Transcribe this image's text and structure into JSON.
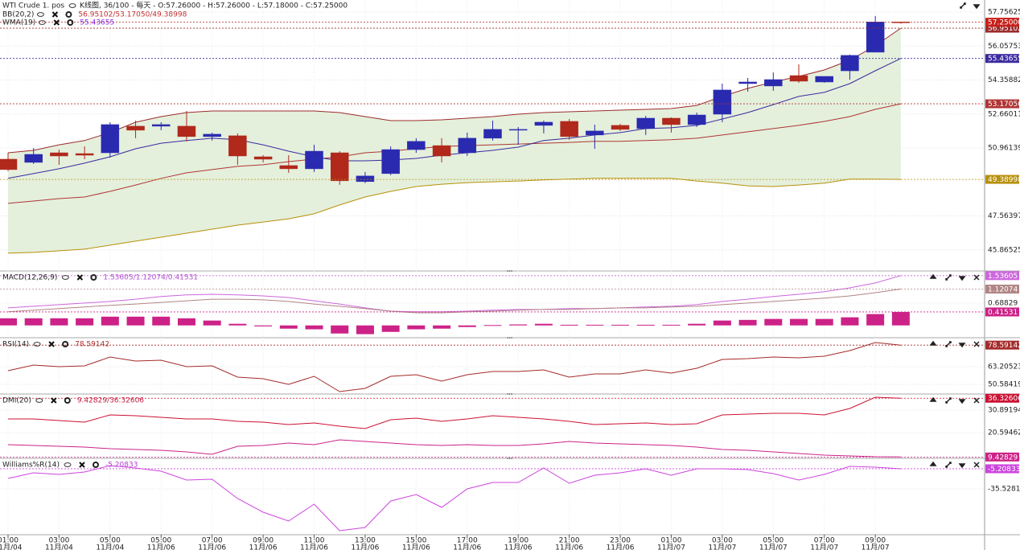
{
  "chart_data": [
    {
      "type": "candlestick",
      "title": "WTI Crude 1. pos",
      "subtitle": "K线图, 36/100 - 每天 - O:57.26000 - H:57.26000 - L:57.18000 - C:57.25000",
      "categories": [
        "01:00",
        null,
        "03:00",
        null,
        "05:00",
        null,
        "05:00",
        null,
        "07:00",
        null,
        "09:00",
        null,
        "11:00",
        null,
        "13:00",
        null,
        "15:00",
        null,
        "17:00",
        null,
        "19:00",
        null,
        "21:00",
        null,
        "23:00",
        null,
        "01:00",
        null,
        "03:00",
        null,
        "05:00",
        null,
        "07:00",
        null,
        "09:00",
        null
      ],
      "dates": [
        "11月/04",
        null,
        "11月/04",
        null,
        "11月/04",
        null,
        "11月/06",
        null,
        "11月/06",
        null,
        "11月/06",
        null,
        "11月/06",
        null,
        "11月/06",
        null,
        "11月/06",
        null,
        "11月/06",
        null,
        "11月/06",
        null,
        "11月/06",
        null,
        "11月/06",
        null,
        "11月/07",
        null,
        "11月/07",
        null,
        "11月/07",
        null,
        "11月/07",
        null,
        "11月/07",
        null
      ],
      "open": [
        50.4,
        50.24,
        50.72,
        50.68,
        50.72,
        52.05,
        52.05,
        52.05,
        51.53,
        51.57,
        50.52,
        50.08,
        49.92,
        50.72,
        49.28,
        49.68,
        50.88,
        51.08,
        50.72,
        51.45,
        51.85,
        52.09,
        52.29,
        51.61,
        52.09,
        51.93,
        52.45,
        52.13,
        52.65,
        54.18,
        54.06,
        54.58,
        54.26,
        54.82,
        55.75,
        57.26
      ],
      "high": [
        50.72,
        50.96,
        50.88,
        51.04,
        52.25,
        52.33,
        52.25,
        52.81,
        51.73,
        51.69,
        50.6,
        50.6,
        51.12,
        50.8,
        49.76,
        51.04,
        51.45,
        51.45,
        51.73,
        52.33,
        52.01,
        52.33,
        52.41,
        52.13,
        52.17,
        52.57,
        52.49,
        52.73,
        54.18,
        54.46,
        54.74,
        55.14,
        54.54,
        55.63,
        57.56,
        57.26
      ],
      "low": [
        49.8,
        50.16,
        50.12,
        50.4,
        50.48,
        51.45,
        51.85,
        51.29,
        51.33,
        50.12,
        50.24,
        49.72,
        49.76,
        49.12,
        49.2,
        49.6,
        50.72,
        50.24,
        50.56,
        51.33,
        51.12,
        51.69,
        51.37,
        50.92,
        51.81,
        51.61,
        51.73,
        52.01,
        52.25,
        53.78,
        53.82,
        54.22,
        54.22,
        54.38,
        55.75,
        57.18
      ],
      "close": [
        49.88,
        50.64,
        50.56,
        50.6,
        52.13,
        51.85,
        52.13,
        51.53,
        51.65,
        50.56,
        50.4,
        49.92,
        50.8,
        49.32,
        49.56,
        50.88,
        51.29,
        50.56,
        51.45,
        51.89,
        51.89,
        52.25,
        51.53,
        51.81,
        51.89,
        52.45,
        52.13,
        52.61,
        53.86,
        54.26,
        54.38,
        54.3,
        54.54,
        55.59,
        57.26,
        57.25
      ],
      "close_label": "57.25000",
      "up_color": "#2a2ab0",
      "down_color": "#b0291b",
      "ylim": [
        44.81,
        58.36
      ],
      "yticks": [
        57.75625,
        56.05753,
        54.35882,
        52.66011,
        50.96139,
        47.56397,
        45.86525
      ],
      "grid": true,
      "indicators": [
        {
          "name": "BB(20,2)",
          "readout": "56.95102/53.17050/49.38998",
          "readout_color": "#c03030",
          "fill": "#e4f0dc",
          "series": [
            {
              "color": "#9c2b2b",
              "values": [
                50.72,
                50.84,
                51.12,
                51.33,
                51.73,
                52.25,
                52.53,
                52.73,
                52.81,
                52.81,
                52.81,
                52.81,
                52.81,
                52.73,
                52.53,
                52.33,
                52.33,
                52.37,
                52.45,
                52.53,
                52.65,
                52.73,
                52.77,
                52.81,
                52.85,
                52.89,
                52.93,
                53.09,
                53.54,
                53.94,
                54.26,
                54.54,
                54.86,
                55.35,
                56.07,
                56.95102
              ],
              "last_label": "56.95102"
            },
            {
              "color": "#b03535",
              "values": [
                48.19,
                48.31,
                48.43,
                48.51,
                48.79,
                49.11,
                49.44,
                49.72,
                49.88,
                50.04,
                50.12,
                50.28,
                50.4,
                50.52,
                50.72,
                50.8,
                50.92,
                51.04,
                51.08,
                51.12,
                51.16,
                51.2,
                51.24,
                51.29,
                51.29,
                51.33,
                51.37,
                51.45,
                51.61,
                51.77,
                51.93,
                52.09,
                52.29,
                52.53,
                52.89,
                53.1705
              ],
              "last_label": "53.17050"
            },
            {
              "color": "#b8900a",
              "values": [
                45.7,
                45.74,
                45.82,
                45.9,
                46.1,
                46.3,
                46.5,
                46.7,
                46.9,
                47.1,
                47.26,
                47.42,
                47.67,
                48.11,
                48.51,
                48.79,
                49.03,
                49.15,
                49.23,
                49.27,
                49.31,
                49.36,
                49.4,
                49.44,
                49.44,
                49.44,
                49.44,
                49.31,
                49.2,
                49.07,
                49.03,
                49.11,
                49.2,
                49.4,
                49.4,
                49.38998
              ],
              "last_label": "49.38998"
            }
          ]
        },
        {
          "name": "WMA(19)",
          "readout": "55.43655",
          "readout_color": "#8a2be2",
          "series": [
            {
              "color": "#3a2aa0",
              "values": [
                49.44,
                49.68,
                49.92,
                50.2,
                50.52,
                50.92,
                51.2,
                51.33,
                51.45,
                51.37,
                51.12,
                50.8,
                50.52,
                50.32,
                50.32,
                50.36,
                50.44,
                50.6,
                50.72,
                50.84,
                51.0,
                51.33,
                51.45,
                51.61,
                51.73,
                51.93,
                51.97,
                52.09,
                52.41,
                52.73,
                53.13,
                53.54,
                53.74,
                54.18,
                54.82,
                55.43655
              ],
              "last_label": "55.43655"
            }
          ]
        }
      ]
    },
    {
      "type": "line",
      "name": "MACD(12,26,9)",
      "readout": "1.53605/1.12074/0.41531",
      "readout_color": "#b050d0",
      "ylim": [
        -0.38,
        1.68
      ],
      "yticks": [
        0.68829
      ],
      "grid": true,
      "series": [
        {
          "color": "#cc66dd",
          "values": [
            0.54,
            0.59,
            0.64,
            0.69,
            0.74,
            0.81,
            0.89,
            0.94,
            0.96,
            0.94,
            0.91,
            0.86,
            0.76,
            0.66,
            0.54,
            0.44,
            0.42,
            0.42,
            0.44,
            0.47,
            0.49,
            0.49,
            0.52,
            0.52,
            0.54,
            0.57,
            0.59,
            0.64,
            0.74,
            0.81,
            0.89,
            0.96,
            1.04,
            1.16,
            1.31,
            1.53605
          ],
          "last_label": "1.53605"
        },
        {
          "color": "#b08585",
          "values": [
            0.42,
            0.47,
            0.52,
            0.57,
            0.62,
            0.66,
            0.71,
            0.76,
            0.81,
            0.81,
            0.79,
            0.74,
            0.66,
            0.59,
            0.52,
            0.44,
            0.39,
            0.39,
            0.42,
            0.44,
            0.47,
            0.49,
            0.49,
            0.52,
            0.54,
            0.54,
            0.57,
            0.59,
            0.64,
            0.69,
            0.74,
            0.79,
            0.84,
            0.91,
            1.01,
            1.12074
          ],
          "last_label": "1.12074"
        },
        {
          "kind": "bar",
          "color": "#cc2288",
          "values": [
            0.22,
            0.22,
            0.22,
            0.22,
            0.27,
            0.27,
            0.27,
            0.22,
            0.15,
            0.05,
            -0.03,
            -0.1,
            -0.12,
            -0.25,
            -0.27,
            -0.2,
            -0.12,
            -0.1,
            -0.05,
            0.01,
            0.03,
            0.05,
            0.02,
            0.02,
            0.02,
            0.02,
            0.02,
            0.05,
            0.15,
            0.17,
            0.2,
            0.2,
            0.2,
            0.25,
            0.35,
            0.41531
          ],
          "last_label": "0.41531"
        }
      ]
    },
    {
      "type": "line",
      "name": "RSI(14)",
      "readout": "78.59142",
      "readout_color": "#b03030",
      "ylim": [
        43.7,
        83.86
      ],
      "yticks": [
        63.20523,
        50.58419
      ],
      "grid": true,
      "series": [
        {
          "color": "#a52a2a",
          "values": [
            60.34,
            64.35,
            63.21,
            63.78,
            70.09,
            67.22,
            67.8,
            63.21,
            63.78,
            55.75,
            54.6,
            50.58,
            56.32,
            45.42,
            47.72,
            56.32,
            57.47,
            52.88,
            57.47,
            59.76,
            59.76,
            60.91,
            55.75,
            58.04,
            58.04,
            60.91,
            58.62,
            62.06,
            68.37,
            68.94,
            70.09,
            69.52,
            70.66,
            74.68,
            80.42,
            78.59142
          ],
          "last_label": "78.59142"
        }
      ]
    },
    {
      "type": "line",
      "name": "DMI(20)",
      "readout": "9.42829/36.32606",
      "readout_color": "#c02040",
      "ylim": [
        8.82,
        38.25
      ],
      "yticks": [
        30.89194,
        20.59462
      ],
      "grid": true,
      "series": [
        {
          "color": "#cc1133",
          "values": [
            26.85,
            26.85,
            26.11,
            25.37,
            28.68,
            28.32,
            27.58,
            26.85,
            26.85,
            25.74,
            25.37,
            24.27,
            25.01,
            23.54,
            22.43,
            26.48,
            27.21,
            25.74,
            26.85,
            28.32,
            27.58,
            26.85,
            25.74,
            24.27,
            24.64,
            25.01,
            24.27,
            24.64,
            28.68,
            29.05,
            29.42,
            29.42,
            28.68,
            31.63,
            36.78,
            36.32606
          ],
          "last_label": "36.32606"
        },
        {
          "color": "#cc2288",
          "values": [
            15.08,
            14.71,
            14.34,
            13.97,
            13.24,
            12.87,
            12.5,
            11.77,
            10.66,
            14.34,
            14.71,
            15.81,
            15.08,
            17.28,
            16.55,
            15.81,
            15.08,
            14.71,
            15.08,
            14.71,
            14.71,
            15.44,
            16.55,
            15.81,
            15.44,
            15.08,
            14.71,
            13.97,
            12.87,
            12.5,
            11.77,
            11.03,
            10.3,
            9.93,
            9.56,
            9.42829
          ],
          "last_label": "9.42829"
        }
      ]
    },
    {
      "type": "line",
      "name": "Williams%R(14)",
      "readout": "-5.20833",
      "readout_color": "#b040d0",
      "ylim": [
        -104.66,
        10.5
      ],
      "yticks": [
        {
          "value": -35.5281,
          "label": "-35.52810"
        }
      ],
      "grid": true,
      "series": [
        {
          "color": "#cc44dd",
          "values": [
            -19.76,
            -11.27,
            -13.7,
            -10.06,
            -0.36,
            -4.0,
            -8.85,
            -22.19,
            -20.97,
            -50.08,
            -70.7,
            -84.04,
            -58.57,
            -98.59,
            -93.74,
            -53.72,
            -44.02,
            -63.42,
            -35.53,
            -25.83,
            -25.83,
            -4.0,
            -27.04,
            -14.91,
            -11.27,
            -5.21,
            -14.91,
            -5.21,
            -5.21,
            -6.42,
            -12.49,
            -22.19,
            -13.7,
            -1.57,
            -2.79,
            -5.20833
          ],
          "last_label": "-5.20833"
        }
      ]
    }
  ]
}
